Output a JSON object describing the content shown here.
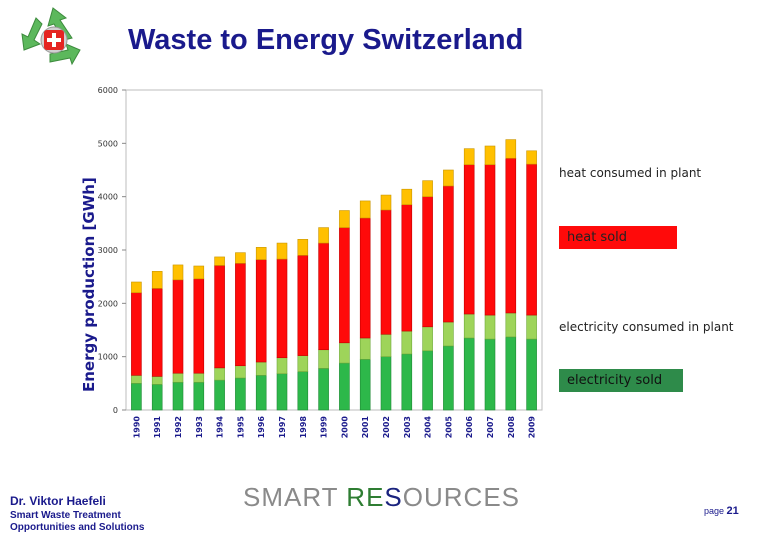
{
  "header": {
    "title": "Waste to Energy Switzerland"
  },
  "colors": {
    "electricity_sold": "#2db84a",
    "electricity_consumed": "#9ed45a",
    "heat_sold": "#ff0a0a",
    "heat_consumed": "#ffc000",
    "axis_text": "#1a1a8c"
  },
  "chart_data": {
    "type": "bar",
    "stacked": true,
    "ylabel": "Energy production [GWh]",
    "ylim": [
      0,
      6000
    ],
    "yticks": [
      "0",
      "1000",
      "2000",
      "3000",
      "4000",
      "5000",
      "6000"
    ],
    "grid": false,
    "categories": [
      "1990",
      "1991",
      "1992",
      "1993",
      "1994",
      "1995",
      "1996",
      "1997",
      "1998",
      "1999",
      "2000",
      "2001",
      "2002",
      "2003",
      "2004",
      "2005",
      "2006",
      "2007",
      "2008",
      "2009"
    ],
    "series": [
      {
        "name": "electricity sold",
        "values": [
          500,
          480,
          520,
          520,
          560,
          600,
          650,
          680,
          720,
          780,
          880,
          950,
          1000,
          1050,
          1110,
          1200,
          1350,
          1330,
          1370,
          1330
        ]
      },
      {
        "name": "electricity consumed in plant",
        "values": [
          150,
          150,
          170,
          170,
          230,
          230,
          250,
          300,
          300,
          350,
          380,
          400,
          420,
          430,
          450,
          450,
          450,
          450,
          450,
          450
        ]
      },
      {
        "name": "heat sold",
        "values": [
          1550,
          1650,
          1750,
          1770,
          1920,
          1920,
          1920,
          1850,
          1880,
          2000,
          2160,
          2250,
          2330,
          2370,
          2440,
          2550,
          2800,
          2820,
          2900,
          2830
        ]
      },
      {
        "name": "heat consumed in plant",
        "values": [
          200,
          320,
          280,
          240,
          160,
          200,
          230,
          300,
          300,
          290,
          320,
          320,
          280,
          290,
          300,
          300,
          300,
          350,
          350,
          250
        ]
      }
    ],
    "legend": [
      {
        "label": "heat consumed in plant",
        "boxed": false
      },
      {
        "label": "heat sold",
        "boxed": true
      },
      {
        "label": "electricity consumed in plant",
        "boxed": false
      },
      {
        "label": "electricity sold",
        "boxed": true
      }
    ]
  },
  "footer": {
    "author": "Dr. Viktor Haefeli",
    "subtitle": "Smart Waste Treatment Opportunities and Solutions",
    "brand_part1": "SMART ",
    "brand_part2": "RE",
    "brand_part3": "S",
    "brand_part4": "OURCES",
    "page_label": "page",
    "page_number": "21"
  }
}
